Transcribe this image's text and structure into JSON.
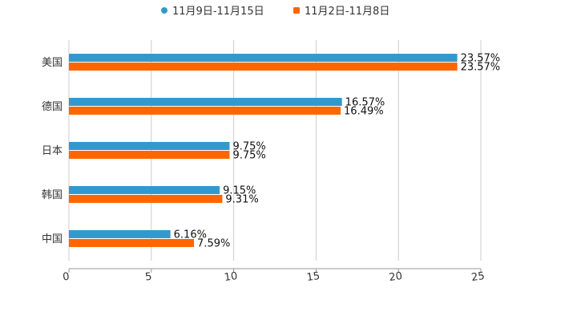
{
  "chart_data": {
    "type": "bar",
    "orientation": "horizontal",
    "title": "",
    "xlabel": "",
    "ylabel": "",
    "categories": [
      "美国",
      "德国",
      "日本",
      "韩国",
      "中国"
    ],
    "series": [
      {
        "name": "11月9日-11月15日",
        "color": "#3399cc",
        "values": [
          23.57,
          16.57,
          9.75,
          9.15,
          6.16
        ],
        "labels": [
          "23.57%",
          "16.57%",
          "9.75%",
          "9.15%",
          "6.16%"
        ]
      },
      {
        "name": "11月2日-11月8日",
        "color": "#ff6600",
        "values": [
          23.57,
          16.49,
          9.75,
          9.31,
          7.59
        ],
        "labels": [
          "23.57%",
          "16.49%",
          "9.75%",
          "9.31%",
          "7.59%"
        ]
      }
    ],
    "xlim": [
      0,
      25
    ],
    "xticks": [
      "0",
      "5",
      "10",
      "15",
      "20",
      "25"
    ],
    "grid": true,
    "legend_position": "top-center"
  }
}
